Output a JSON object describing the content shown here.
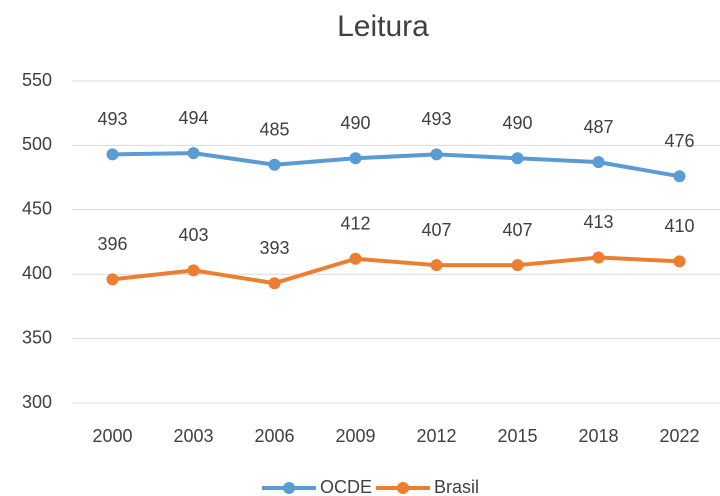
{
  "chart_data": {
    "type": "line",
    "title": "Leitura",
    "categories": [
      "2000",
      "2003",
      "2006",
      "2009",
      "2012",
      "2015",
      "2018",
      "2022"
    ],
    "series": [
      {
        "name": "OCDE",
        "color": "#5b9bd5",
        "values": [
          493,
          494,
          485,
          490,
          493,
          490,
          487,
          476
        ]
      },
      {
        "name": "Brasil",
        "color": "#ed7d31",
        "values": [
          396,
          403,
          393,
          412,
          407,
          407,
          413,
          410
        ]
      }
    ],
    "ylim": [
      300,
      550
    ],
    "yticks": [
      300,
      350,
      400,
      450,
      500,
      550
    ],
    "grid": true,
    "legend": "bottom"
  }
}
